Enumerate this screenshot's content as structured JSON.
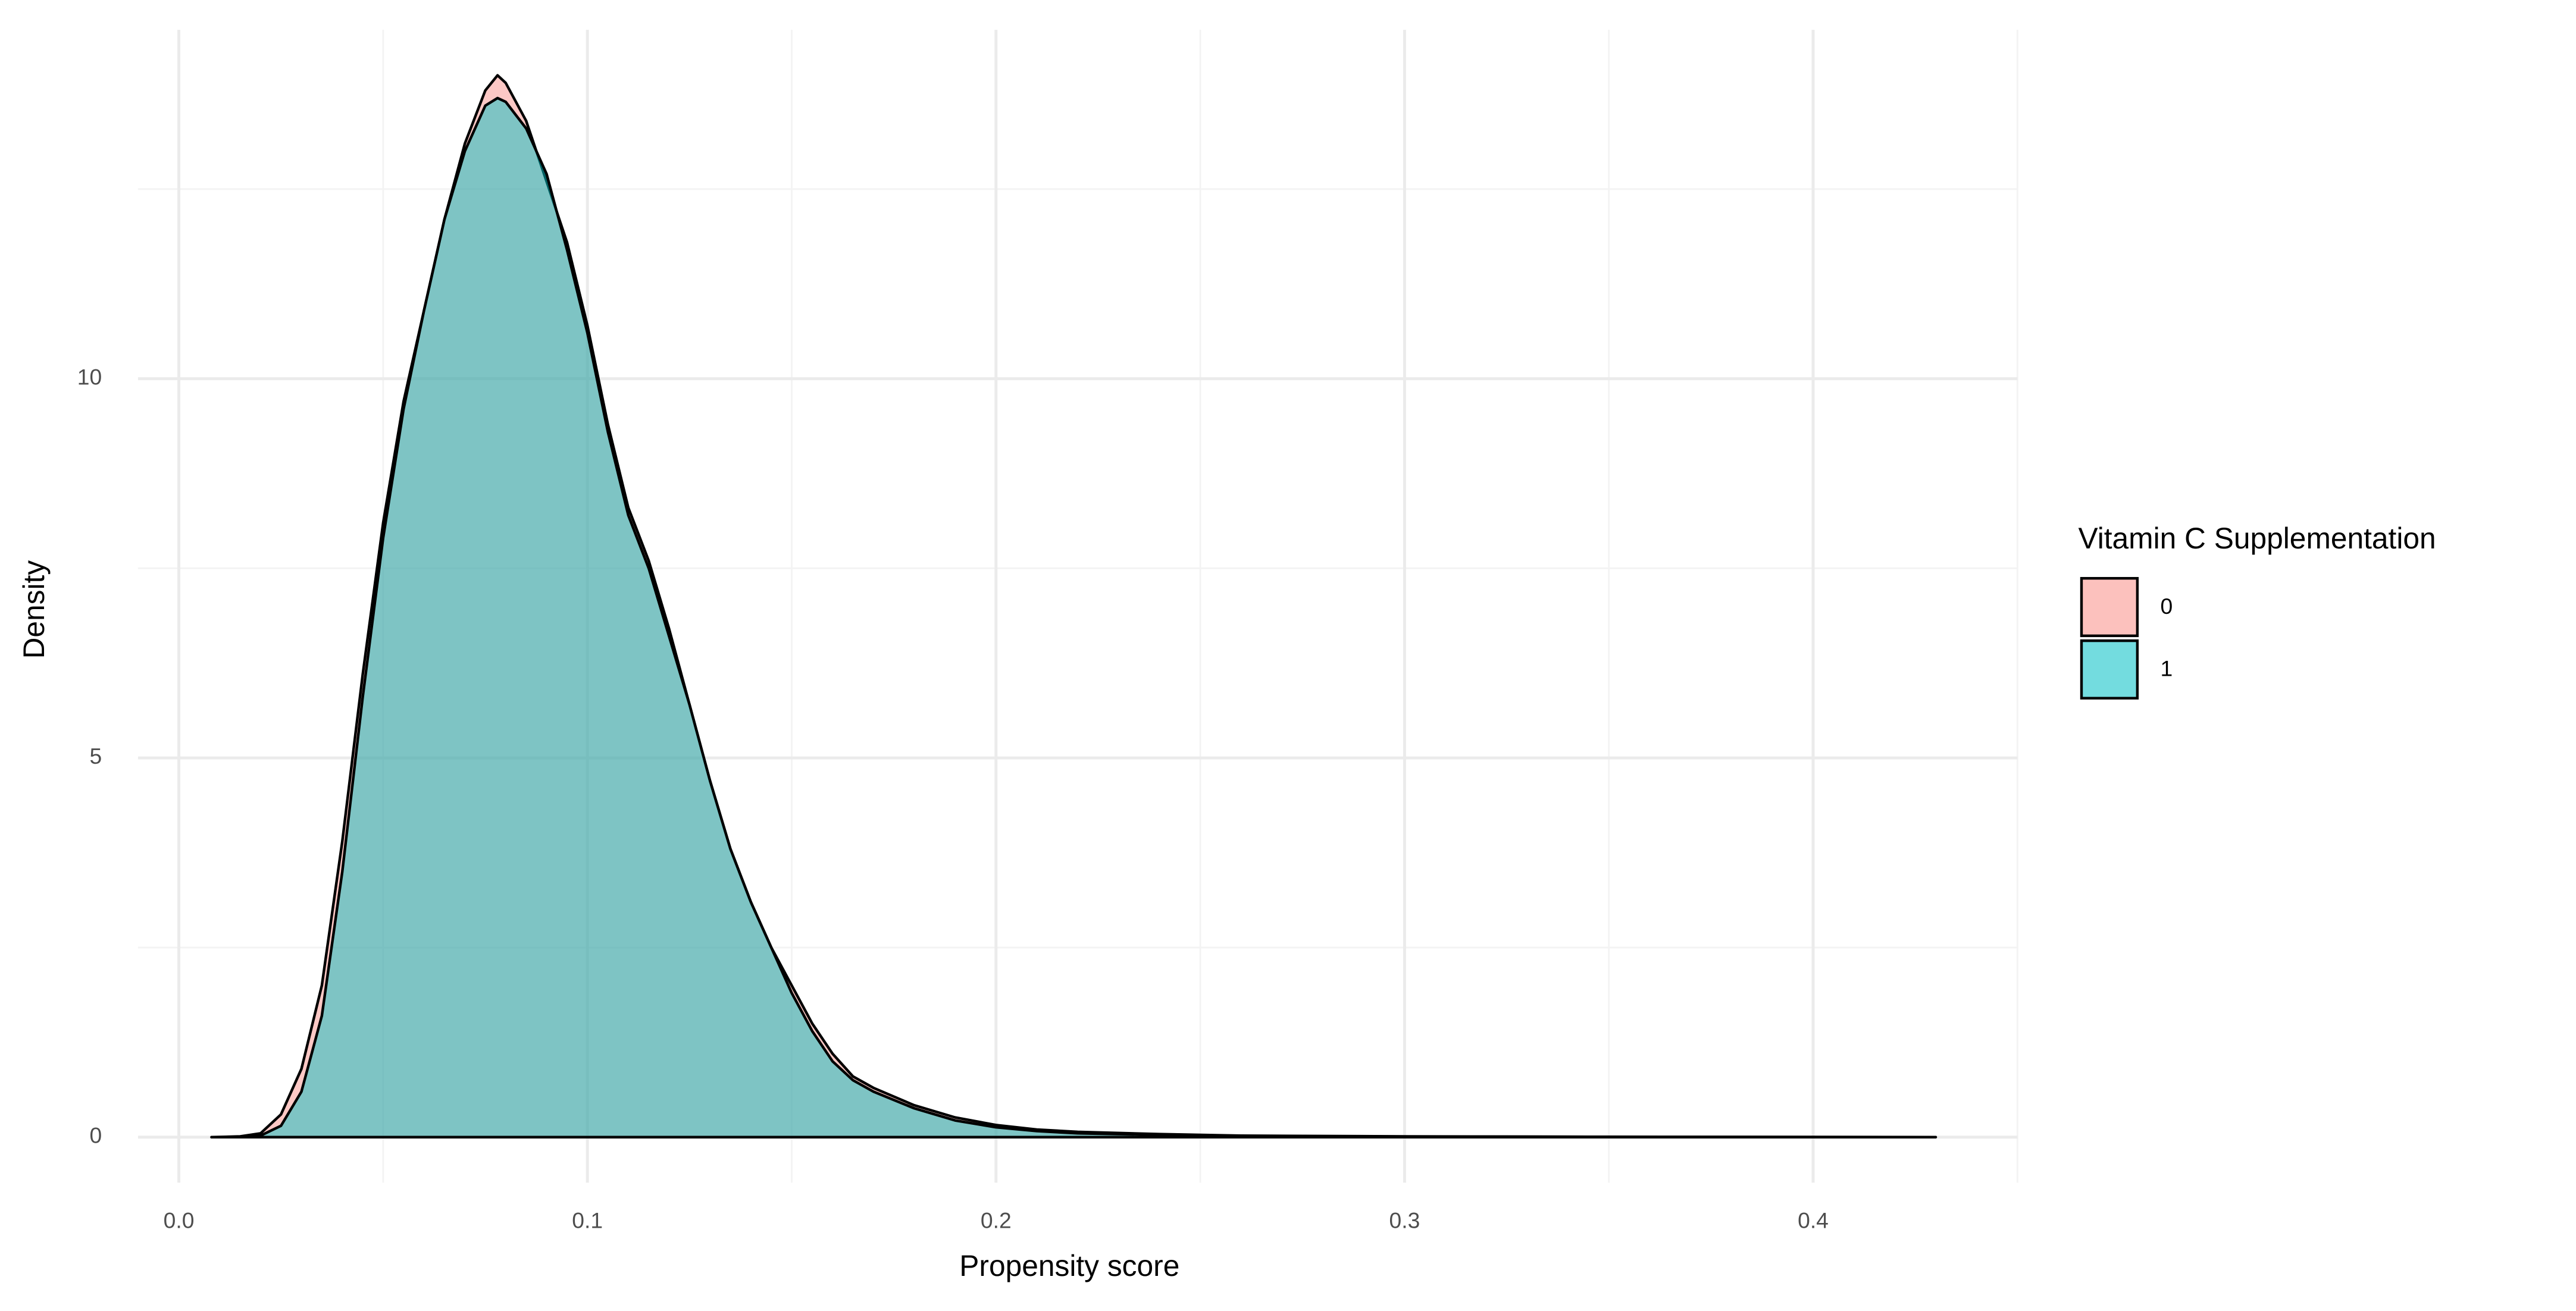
{
  "chart_data": {
    "type": "density",
    "x_label": "Propensity score",
    "y_label": "Density",
    "legend_title": "Vitamin C Supplementation",
    "legend": "right",
    "grid": true,
    "xlim": [
      -0.01,
      0.45
    ],
    "ylim": [
      -0.6,
      14.6
    ],
    "xticks": [
      {
        "value": 0,
        "label": "0.0"
      },
      0.1,
      0.2,
      0.3,
      0.4
    ],
    "yticks": [
      0,
      5,
      10
    ],
    "xminor": [
      0.05,
      0.15,
      0.25,
      0.35,
      0.45
    ],
    "yminor": [
      2.5,
      7.5,
      12.5
    ],
    "x": [
      0.008,
      0.015,
      0.02,
      0.025,
      0.03,
      0.035,
      0.04,
      0.045,
      0.05,
      0.055,
      0.06,
      0.065,
      0.07,
      0.075,
      0.078,
      0.08,
      0.085,
      0.09,
      0.095,
      0.1,
      0.105,
      0.11,
      0.115,
      0.12,
      0.125,
      0.13,
      0.135,
      0.14,
      0.145,
      0.15,
      0.155,
      0.16,
      0.165,
      0.17,
      0.18,
      0.19,
      0.2,
      0.21,
      0.22,
      0.24,
      0.26,
      0.3,
      0.35,
      0.43
    ],
    "series": [
      {
        "name": "0",
        "color": "#F8766D",
        "opacity": 0.4,
        "values": [
          0,
          0.01,
          0.05,
          0.3,
          0.9,
          2.0,
          3.9,
          6.1,
          8.1,
          9.7,
          10.9,
          12.1,
          13.1,
          13.8,
          14.0,
          13.9,
          13.4,
          12.6,
          11.8,
          10.7,
          9.4,
          8.3,
          7.6,
          6.7,
          5.7,
          4.7,
          3.8,
          3.1,
          2.5,
          2.0,
          1.5,
          1.1,
          0.8,
          0.65,
          0.42,
          0.26,
          0.16,
          0.1,
          0.07,
          0.04,
          0.02,
          0.01,
          0.005,
          0
        ]
      },
      {
        "name": "1",
        "color": "#00BFC4",
        "opacity": 0.5,
        "values": [
          0,
          0.0,
          0.02,
          0.15,
          0.6,
          1.6,
          3.5,
          5.8,
          7.9,
          9.6,
          10.9,
          12.1,
          13.0,
          13.6,
          13.7,
          13.65,
          13.3,
          12.7,
          11.7,
          10.6,
          9.3,
          8.2,
          7.5,
          6.6,
          5.7,
          4.7,
          3.8,
          3.1,
          2.5,
          1.9,
          1.4,
          1.0,
          0.75,
          0.6,
          0.38,
          0.22,
          0.13,
          0.08,
          0.05,
          0.03,
          0.015,
          0.008,
          0.004,
          0
        ]
      }
    ]
  }
}
